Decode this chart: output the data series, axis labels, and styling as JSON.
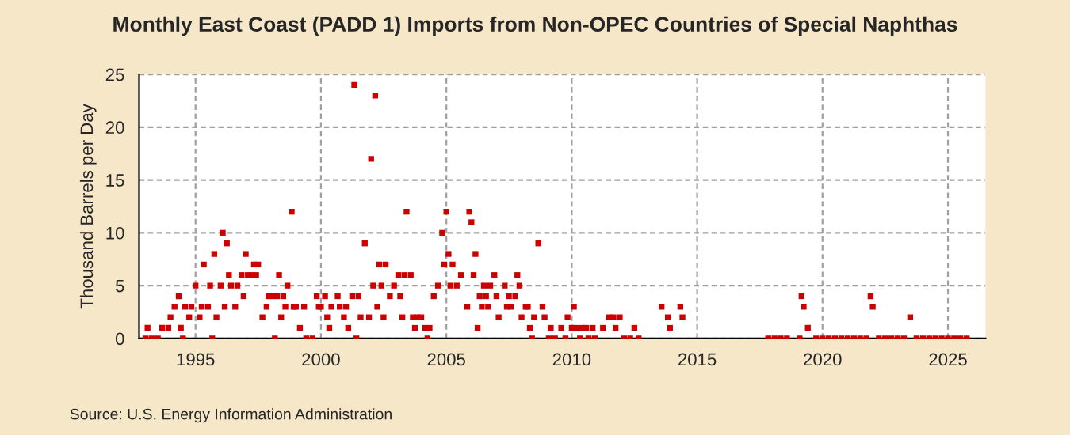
{
  "chart_data": {
    "type": "scatter",
    "title": "Monthly East Coast (PADD 1) Imports from Non-OPEC Countries of Special Naphthas",
    "ylabel": "Thousand Barrels per Day",
    "annotations": [
      "Source: U.S. Energy Information Administration"
    ],
    "color": "#cc0000",
    "marker": "square",
    "grid": true,
    "xlim": [
      "1992-10",
      "2026-07"
    ],
    "xticks": [
      {
        "value": "1995",
        "label": "1995"
      },
      {
        "value": "2000",
        "label": "2000"
      },
      {
        "value": "2005",
        "label": "2005"
      },
      {
        "value": "2010",
        "label": "2010"
      },
      {
        "value": "2015",
        "label": "2015"
      },
      {
        "value": "2020",
        "label": "2020"
      },
      {
        "value": "2025",
        "label": "2025"
      }
    ],
    "ylim": [
      0,
      25
    ],
    "yticks": [
      0,
      5,
      10,
      15,
      20,
      25
    ],
    "x": [
      "1993-01",
      "1993-02",
      "1993-04",
      "1993-07",
      "1993-09",
      "1993-12",
      "1994-01",
      "1994-03",
      "1994-05",
      "1994-06",
      "1994-07",
      "1994-08",
      "1994-10",
      "1994-11",
      "1995-01",
      "1995-03",
      "1995-04",
      "1995-05",
      "1995-07",
      "1995-08",
      "1995-09",
      "1995-10",
      "1995-11",
      "1996-01",
      "1996-02",
      "1996-03",
      "1996-04",
      "1996-05",
      "1996-06",
      "1996-08",
      "1996-09",
      "1996-11",
      "1996-12",
      "1997-01",
      "1997-02",
      "1997-04",
      "1997-05",
      "1997-06",
      "1997-07",
      "1997-09",
      "1997-11",
      "1997-12",
      "1998-02",
      "1998-03",
      "1998-04",
      "1998-05",
      "1998-06",
      "1998-07",
      "1998-08",
      "1998-09",
      "1998-11",
      "1998-12",
      "1999-01",
      "1999-03",
      "1999-05",
      "1999-06",
      "1999-09",
      "1999-11",
      "1999-12",
      "2000-01",
      "2000-03",
      "2000-04",
      "2000-05",
      "2000-06",
      "2000-09",
      "2000-10",
      "2000-12",
      "2001-01",
      "2001-02",
      "2001-04",
      "2001-05",
      "2001-06",
      "2001-07",
      "2001-08",
      "2001-10",
      "2001-12",
      "2002-01",
      "2002-02",
      "2002-03",
      "2002-04",
      "2002-05",
      "2002-06",
      "2002-07",
      "2002-08",
      "2002-10",
      "2002-12",
      "2003-02",
      "2003-03",
      "2003-04",
      "2003-05",
      "2003-06",
      "2003-08",
      "2003-09",
      "2003-10",
      "2003-11",
      "2004-01",
      "2004-03",
      "2004-04",
      "2004-05",
      "2004-07",
      "2004-09",
      "2004-11",
      "2004-12",
      "2005-01",
      "2005-02",
      "2005-03",
      "2005-04",
      "2005-06",
      "2005-08",
      "2005-11",
      "2005-12",
      "2006-01",
      "2006-02",
      "2006-03",
      "2006-04",
      "2006-05",
      "2006-06",
      "2006-07",
      "2006-08",
      "2006-09",
      "2006-10",
      "2006-12",
      "2007-01",
      "2007-02",
      "2007-05",
      "2007-06",
      "2007-07",
      "2007-08",
      "2007-10",
      "2007-11",
      "2007-12",
      "2008-01",
      "2008-03",
      "2008-04",
      "2008-05",
      "2008-06",
      "2008-07",
      "2008-09",
      "2008-11",
      "2008-12",
      "2009-02",
      "2009-03",
      "2009-05",
      "2009-08",
      "2009-10",
      "2009-11",
      "2010-01",
      "2010-02",
      "2010-03",
      "2010-05",
      "2010-06",
      "2010-08",
      "2010-09",
      "2010-11",
      "2010-12",
      "2011-04",
      "2011-07",
      "2011-09",
      "2011-10",
      "2011-12",
      "2012-02",
      "2012-05",
      "2012-07",
      "2012-09",
      "2013-08",
      "2013-11",
      "2013-12",
      "2014-05",
      "2014-06",
      "2017-11",
      "2018-02",
      "2018-05",
      "2018-08",
      "2019-02",
      "2019-03",
      "2019-04",
      "2019-06",
      "2019-10",
      "2020-01",
      "2020-04",
      "2020-07",
      "2020-10",
      "2021-01",
      "2021-04",
      "2021-07",
      "2021-10",
      "2021-12",
      "2022-01",
      "2022-04",
      "2022-07",
      "2022-10",
      "2023-01",
      "2023-04",
      "2023-07",
      "2023-10",
      "2024-01",
      "2024-04",
      "2024-07",
      "2024-10",
      "2025-01",
      "2025-04",
      "2025-07",
      "2025-10"
    ],
    "values": [
      0,
      1,
      0,
      0,
      1,
      1,
      2,
      3,
      4,
      1,
      0,
      3,
      2,
      3,
      5,
      2,
      3,
      7,
      3,
      5,
      0,
      8,
      2,
      5,
      10,
      3,
      9,
      6,
      5,
      3,
      5,
      6,
      4,
      8,
      6,
      6,
      7,
      6,
      7,
      2,
      3,
      4,
      4,
      0,
      4,
      6,
      2,
      4,
      3,
      5,
      12,
      3,
      3,
      1,
      3,
      0,
      0,
      4,
      3,
      3,
      4,
      2,
      1,
      3,
      4,
      3,
      2,
      3,
      1,
      4,
      24,
      0,
      4,
      2,
      9,
      2,
      17,
      5,
      23,
      3,
      7,
      5,
      2,
      7,
      4,
      5,
      6,
      4,
      2,
      6,
      12,
      6,
      2,
      1,
      2,
      2,
      1,
      0,
      1,
      4,
      5,
      10,
      7,
      12,
      8,
      5,
      7,
      5,
      6,
      3,
      12,
      11,
      6,
      8,
      1,
      4,
      3,
      5,
      4,
      3,
      5,
      6,
      4,
      2,
      5,
      3,
      4,
      3,
      4,
      6,
      5,
      2,
      3,
      3,
      1,
      0,
      2,
      9,
      3,
      2,
      0,
      1,
      0,
      1,
      0,
      2,
      1,
      3,
      1,
      0,
      1,
      1,
      0,
      1,
      0,
      1,
      2,
      2,
      1,
      2,
      0,
      0,
      1,
      0,
      3,
      2,
      1,
      3,
      2,
      0,
      0,
      0,
      0,
      0,
      4,
      3,
      1,
      0,
      0,
      0,
      0,
      0,
      0,
      0,
      0,
      0,
      4,
      3,
      0,
      0,
      0,
      0,
      0,
      2,
      0,
      0,
      0,
      0,
      0,
      0,
      0,
      0,
      0
    ]
  }
}
